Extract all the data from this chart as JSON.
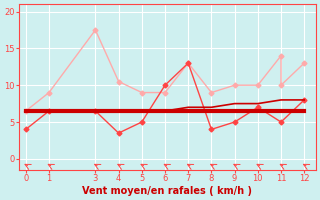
{
  "x": [
    0,
    1,
    3,
    4,
    5,
    6,
    7,
    8,
    9,
    10,
    11,
    12
  ],
  "line_flat": [
    6.5,
    6.5,
    6.5,
    6.5,
    6.5,
    6.5,
    6.5,
    6.5,
    6.5,
    6.5,
    6.5,
    6.5
  ],
  "line_rising": [
    6.5,
    6.5,
    6.5,
    6.5,
    6.5,
    6.5,
    7.0,
    7.0,
    7.5,
    7.5,
    8.0,
    8.0
  ],
  "line_spiky": [
    4.0,
    6.5,
    6.5,
    3.5,
    5.0,
    10.0,
    13.0,
    4.0,
    5.0,
    7.0,
    5.0,
    8.0
  ],
  "line_upper": [
    6.5,
    9.0,
    17.5,
    10.5,
    9.0,
    9.0,
    13.0,
    9.0,
    10.0,
    10.0,
    14.0,
    10.0,
    13.0
  ],
  "x_upper": [
    0,
    1,
    3,
    4,
    5,
    6,
    7,
    8,
    9,
    10,
    11,
    11,
    12
  ],
  "bg_color": "#cff0f0",
  "color_dark_red": "#cc0000",
  "color_medium_red": "#ff4444",
  "color_light_pink": "#ffaaaa",
  "xlabel": "Vent moyen/en rafales ( km/h )",
  "yticks": [
    0,
    5,
    10,
    15,
    20
  ],
  "xticks": [
    0,
    1,
    3,
    4,
    5,
    6,
    7,
    8,
    9,
    10,
    11,
    12
  ],
  "ylim": [
    -1.5,
    21
  ],
  "xlim": [
    -0.3,
    12.5
  ]
}
